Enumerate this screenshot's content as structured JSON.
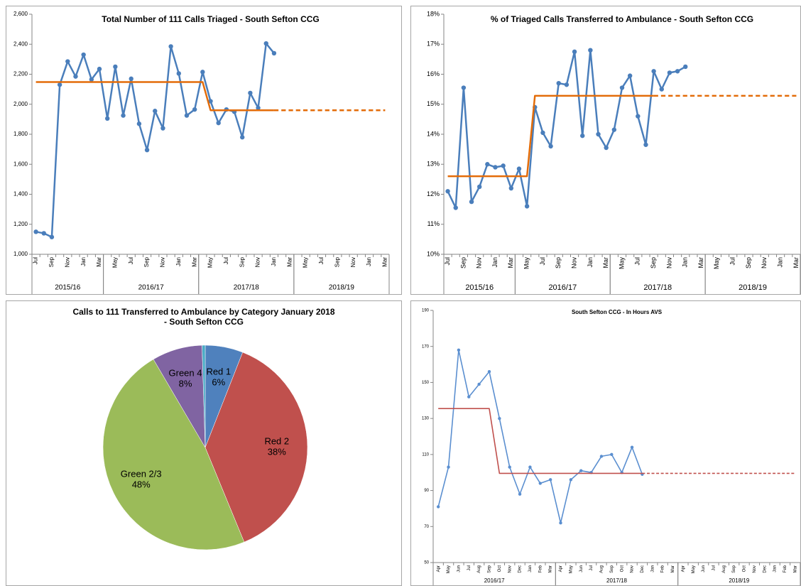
{
  "chart_data": [
    {
      "type": "line",
      "title": "Total Number of 111 Calls Triaged - South Sefton CCG",
      "categories": [
        "Jul",
        null,
        "Sep",
        null,
        "Nov",
        null,
        "Jan",
        null,
        "Mar",
        null,
        "May",
        null,
        "Jul",
        null,
        "Sep",
        null,
        "Nov",
        null,
        "Jan",
        null,
        "Mar",
        null,
        "May",
        null,
        "Jul",
        null,
        "Sep",
        null,
        "Nov",
        null,
        "Jan",
        null,
        "Mar",
        null,
        "May",
        null,
        "Jul",
        null,
        "Sep",
        null,
        "Nov",
        null,
        "Jan",
        null,
        "Mar"
      ],
      "x_groups": [
        {
          "label": "2015/16",
          "span": 9
        },
        {
          "label": "2016/17",
          "span": 12
        },
        {
          "label": "2017/18",
          "span": 12
        },
        {
          "label": "2018/19",
          "span": 12
        }
      ],
      "ylim": [
        1000,
        2600
      ],
      "yticks": [
        {
          "value": 1000,
          "label": "1,000"
        },
        {
          "value": 1200,
          "label": "1,200"
        },
        {
          "value": 1400,
          "label": "1,400"
        },
        {
          "value": 1600,
          "label": "1,600"
        },
        {
          "value": 1800,
          "label": "1,800"
        },
        {
          "value": 2000,
          "label": "2,000"
        },
        {
          "value": 2200,
          "label": "2,200"
        },
        {
          "value": 2400,
          "label": "2,400"
        },
        {
          "value": 2600,
          "label": "2,600"
        }
      ],
      "series": [
        {
          "color": "#4a7ebb",
          "markers": true,
          "values": [
            1150,
            1140,
            1115,
            2130,
            2285,
            2185,
            2330,
            2165,
            2235,
            1905,
            2250,
            1925,
            2170,
            1870,
            1695,
            1955,
            1840,
            2385,
            2205,
            1925,
            1965,
            2215,
            2020,
            1875,
            1965,
            1950,
            1780,
            2075,
            1975,
            2405,
            2340,
            null,
            null,
            null,
            null,
            null,
            null,
            null,
            null,
            null,
            null,
            null,
            null,
            null,
            null
          ]
        },
        {
          "color": "#e36c09",
          "values": [
            2148,
            2148,
            2148,
            2148,
            2148,
            2148,
            2148,
            2148,
            2148,
            2148,
            2148,
            2148,
            2148,
            2148,
            2148,
            2148,
            2148,
            2148,
            2148,
            2148,
            2148,
            2148,
            1960,
            1960,
            1960,
            1960,
            1960,
            1960,
            1960,
            1960,
            1960,
            null,
            null,
            null,
            null,
            null,
            null,
            null,
            null,
            null,
            null,
            null,
            null,
            null,
            null
          ]
        },
        {
          "color": "#e36c09",
          "dashed": true,
          "values": [
            null,
            null,
            null,
            null,
            null,
            null,
            null,
            null,
            null,
            null,
            null,
            null,
            null,
            null,
            null,
            null,
            null,
            null,
            null,
            null,
            null,
            null,
            null,
            null,
            null,
            null,
            null,
            null,
            null,
            null,
            1960,
            1960,
            1960,
            1960,
            1960,
            1960,
            1960,
            1960,
            1960,
            1960,
            1960,
            1960,
            1960,
            1960,
            1960
          ]
        }
      ]
    },
    {
      "type": "line",
      "title": "% of Triaged Calls Transferred to Ambulance - South Sefton CCG",
      "categories": [
        "Jul",
        null,
        "Sep",
        null,
        "Nov",
        null,
        "Jan",
        null,
        "Mar",
        null,
        "May",
        null,
        "Jul",
        null,
        "Sep",
        null,
        "Nov",
        null,
        "Jan",
        null,
        "Mar",
        null,
        "May",
        null,
        "Jul",
        null,
        "Sep",
        null,
        "Nov",
        null,
        "Jan",
        null,
        "Mar",
        null,
        "May",
        null,
        "Jul",
        null,
        "Sep",
        null,
        "Nov",
        null,
        "Jan",
        null,
        "Mar"
      ],
      "x_groups": [
        {
          "label": "2015/16",
          "span": 9
        },
        {
          "label": "2016/17",
          "span": 12
        },
        {
          "label": "2017/18",
          "span": 12
        },
        {
          "label": "2018/19",
          "span": 12
        }
      ],
      "ylim": [
        10,
        18
      ],
      "yticks": [
        {
          "value": 10,
          "label": "10%"
        },
        {
          "value": 11,
          "label": "11%"
        },
        {
          "value": 12,
          "label": "12%"
        },
        {
          "value": 13,
          "label": "13%"
        },
        {
          "value": 14,
          "label": "14%"
        },
        {
          "value": 15,
          "label": "15%"
        },
        {
          "value": 16,
          "label": "16%"
        },
        {
          "value": 17,
          "label": "17%"
        },
        {
          "value": 18,
          "label": "18%"
        }
      ],
      "series": [
        {
          "color": "#4a7ebb",
          "markers": true,
          "values": [
            12.1,
            11.55,
            15.55,
            11.75,
            12.25,
            13.0,
            12.9,
            12.95,
            12.2,
            12.85,
            11.6,
            14.9,
            14.05,
            13.6,
            15.7,
            15.65,
            16.75,
            13.95,
            16.8,
            14.0,
            13.55,
            14.15,
            15.55,
            15.95,
            14.6,
            13.65,
            16.1,
            15.5,
            16.05,
            16.1,
            16.25,
            null,
            null,
            null,
            null,
            null,
            null,
            null,
            null,
            null,
            null,
            null,
            null,
            null,
            null
          ]
        },
        {
          "color": "#e36c09",
          "values": [
            12.6,
            12.6,
            12.6,
            12.6,
            12.6,
            12.6,
            12.6,
            12.6,
            12.6,
            12.6,
            12.6,
            15.28,
            15.28,
            15.28,
            15.28,
            15.28,
            15.28,
            15.28,
            15.28,
            15.28,
            15.28,
            15.28,
            15.28,
            15.28,
            15.28,
            15.28,
            15.28,
            null,
            null,
            null,
            null,
            null,
            null,
            null,
            null,
            null,
            null,
            null,
            null,
            null,
            null,
            null,
            null,
            null,
            null
          ]
        },
        {
          "color": "#e36c09",
          "dashed": true,
          "values": [
            null,
            null,
            null,
            null,
            null,
            null,
            null,
            null,
            null,
            null,
            null,
            null,
            null,
            null,
            null,
            null,
            null,
            null,
            null,
            null,
            null,
            null,
            null,
            null,
            null,
            null,
            15.28,
            15.28,
            15.28,
            15.28,
            15.28,
            15.28,
            15.28,
            15.28,
            15.28,
            15.28,
            15.28,
            15.28,
            15.28,
            15.28,
            15.28,
            15.28,
            15.28,
            15.28,
            15.28
          ]
        }
      ]
    },
    {
      "type": "pie",
      "title": "Calls to 111 Transferred to Ambulance by Category January 2018\n- South Sefton CCG",
      "categories": [
        "Red 1",
        "Red 2",
        "Green 2/3",
        "Green 4",
        null
      ],
      "values": [
        6,
        38,
        48,
        8,
        0.5
      ],
      "value_labels": [
        "6%",
        "38%",
        "48%",
        "8%",
        null
      ],
      "colors": [
        "#4f81bd",
        "#c0504d",
        "#9bbb59",
        "#8064a2",
        "#4bacc6"
      ]
    },
    {
      "type": "line",
      "title": "South Sefton CCG - In Hours AVS",
      "categories": [
        "Apr",
        "May",
        "Jun",
        "Jul",
        "Aug",
        "Sep",
        "Oct",
        "Nov",
        "Dec",
        "Jan",
        "Feb",
        "Mar",
        "Apr",
        "May",
        "Jun",
        "Jul",
        "Aug",
        "Sep",
        "Oct",
        "Nov",
        "Dec",
        "Jan",
        "Feb",
        "Mar",
        "Apr",
        "May",
        "Jun",
        "Jul",
        "Aug",
        "Sep",
        "Oct",
        "Nov",
        "Dec",
        "Jan",
        "Feb",
        "Mar"
      ],
      "x_groups": [
        {
          "label": "2016/17",
          "span": 12
        },
        {
          "label": "2017/18",
          "span": 12
        },
        {
          "label": "2018/19",
          "span": 12
        }
      ],
      "ylim": [
        50,
        190
      ],
      "yticks": [
        50,
        70,
        90,
        110,
        130,
        150,
        170,
        190
      ],
      "series": [
        {
          "color": "#5b8fd0",
          "markers": true,
          "values": [
            81,
            103,
            168,
            142,
            149,
            156,
            130,
            103,
            88,
            103,
            94,
            96,
            72,
            96,
            101,
            100,
            109,
            110,
            100,
            114,
            99,
            null,
            null,
            null,
            null,
            null,
            null,
            null,
            null,
            null,
            null,
            null,
            null,
            null,
            null,
            null
          ]
        },
        {
          "color": "#c0504d",
          "values": [
            135.5,
            135.5,
            135.5,
            135.5,
            135.5,
            135.5,
            99.5,
            99.5,
            99.5,
            99.5,
            99.5,
            99.5,
            99.5,
            99.5,
            99.5,
            99.5,
            99.5,
            99.5,
            99.5,
            99.5,
            99.5,
            null,
            null,
            null,
            null,
            null,
            null,
            null,
            null,
            null,
            null,
            null,
            null,
            null,
            null,
            null
          ]
        },
        {
          "color": "#c0504d",
          "dashed": true,
          "values": [
            null,
            null,
            null,
            null,
            null,
            null,
            null,
            null,
            null,
            null,
            null,
            null,
            null,
            null,
            null,
            null,
            null,
            null,
            null,
            null,
            99.5,
            99.5,
            99.5,
            99.5,
            99.5,
            99.5,
            99.5,
            99.5,
            99.5,
            99.5,
            99.5,
            99.5,
            99.5,
            99.5,
            99.5,
            99.5
          ]
        }
      ]
    }
  ]
}
